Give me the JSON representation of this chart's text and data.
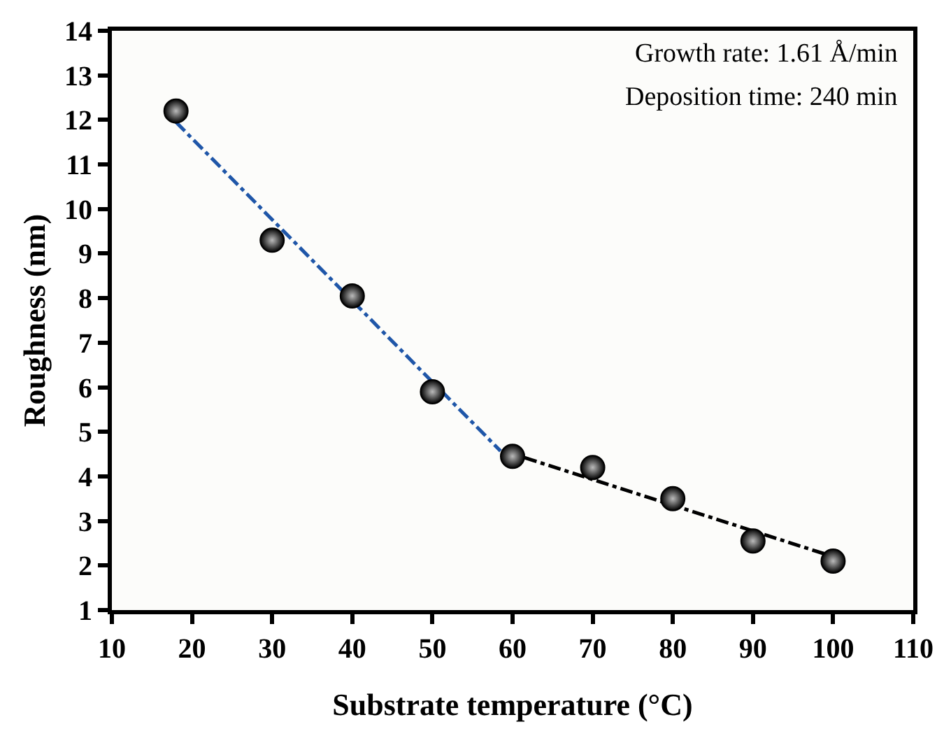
{
  "chart_data": {
    "type": "scatter",
    "xlabel": "Substrate temperature (°C)",
    "ylabel": "Roughness (nm)",
    "annotations": [
      "Growth rate: 1.61 Å/min",
      "Deposition time: 240 min"
    ],
    "xlim": [
      10,
      110
    ],
    "xticks": [
      10,
      20,
      30,
      40,
      50,
      60,
      70,
      80,
      90,
      100,
      110
    ],
    "ylim": [
      1,
      14
    ],
    "yticks": [
      1,
      2,
      3,
      4,
      5,
      6,
      7,
      8,
      9,
      10,
      11,
      12,
      13,
      14
    ],
    "grid": false,
    "marker": "circle",
    "series": [
      {
        "type": "line",
        "marker": "none",
        "color": "#1f56a8",
        "line_style": "dashed",
        "x": [
          18,
          58.5
        ],
        "values": [
          11.95,
          4.57
        ]
      },
      {
        "type": "line",
        "marker": "none",
        "color": "#000000",
        "line_style": "dashed",
        "x": [
          61.5,
          100
        ],
        "values": [
          4.42,
          2.2
        ]
      },
      {
        "color": "#000000",
        "x": [
          18,
          30,
          40,
          50,
          60,
          70,
          80,
          90,
          100
        ],
        "values": [
          12.2,
          9.3,
          8.05,
          5.9,
          4.45,
          4.2,
          3.5,
          2.55,
          2.1
        ]
      }
    ]
  }
}
